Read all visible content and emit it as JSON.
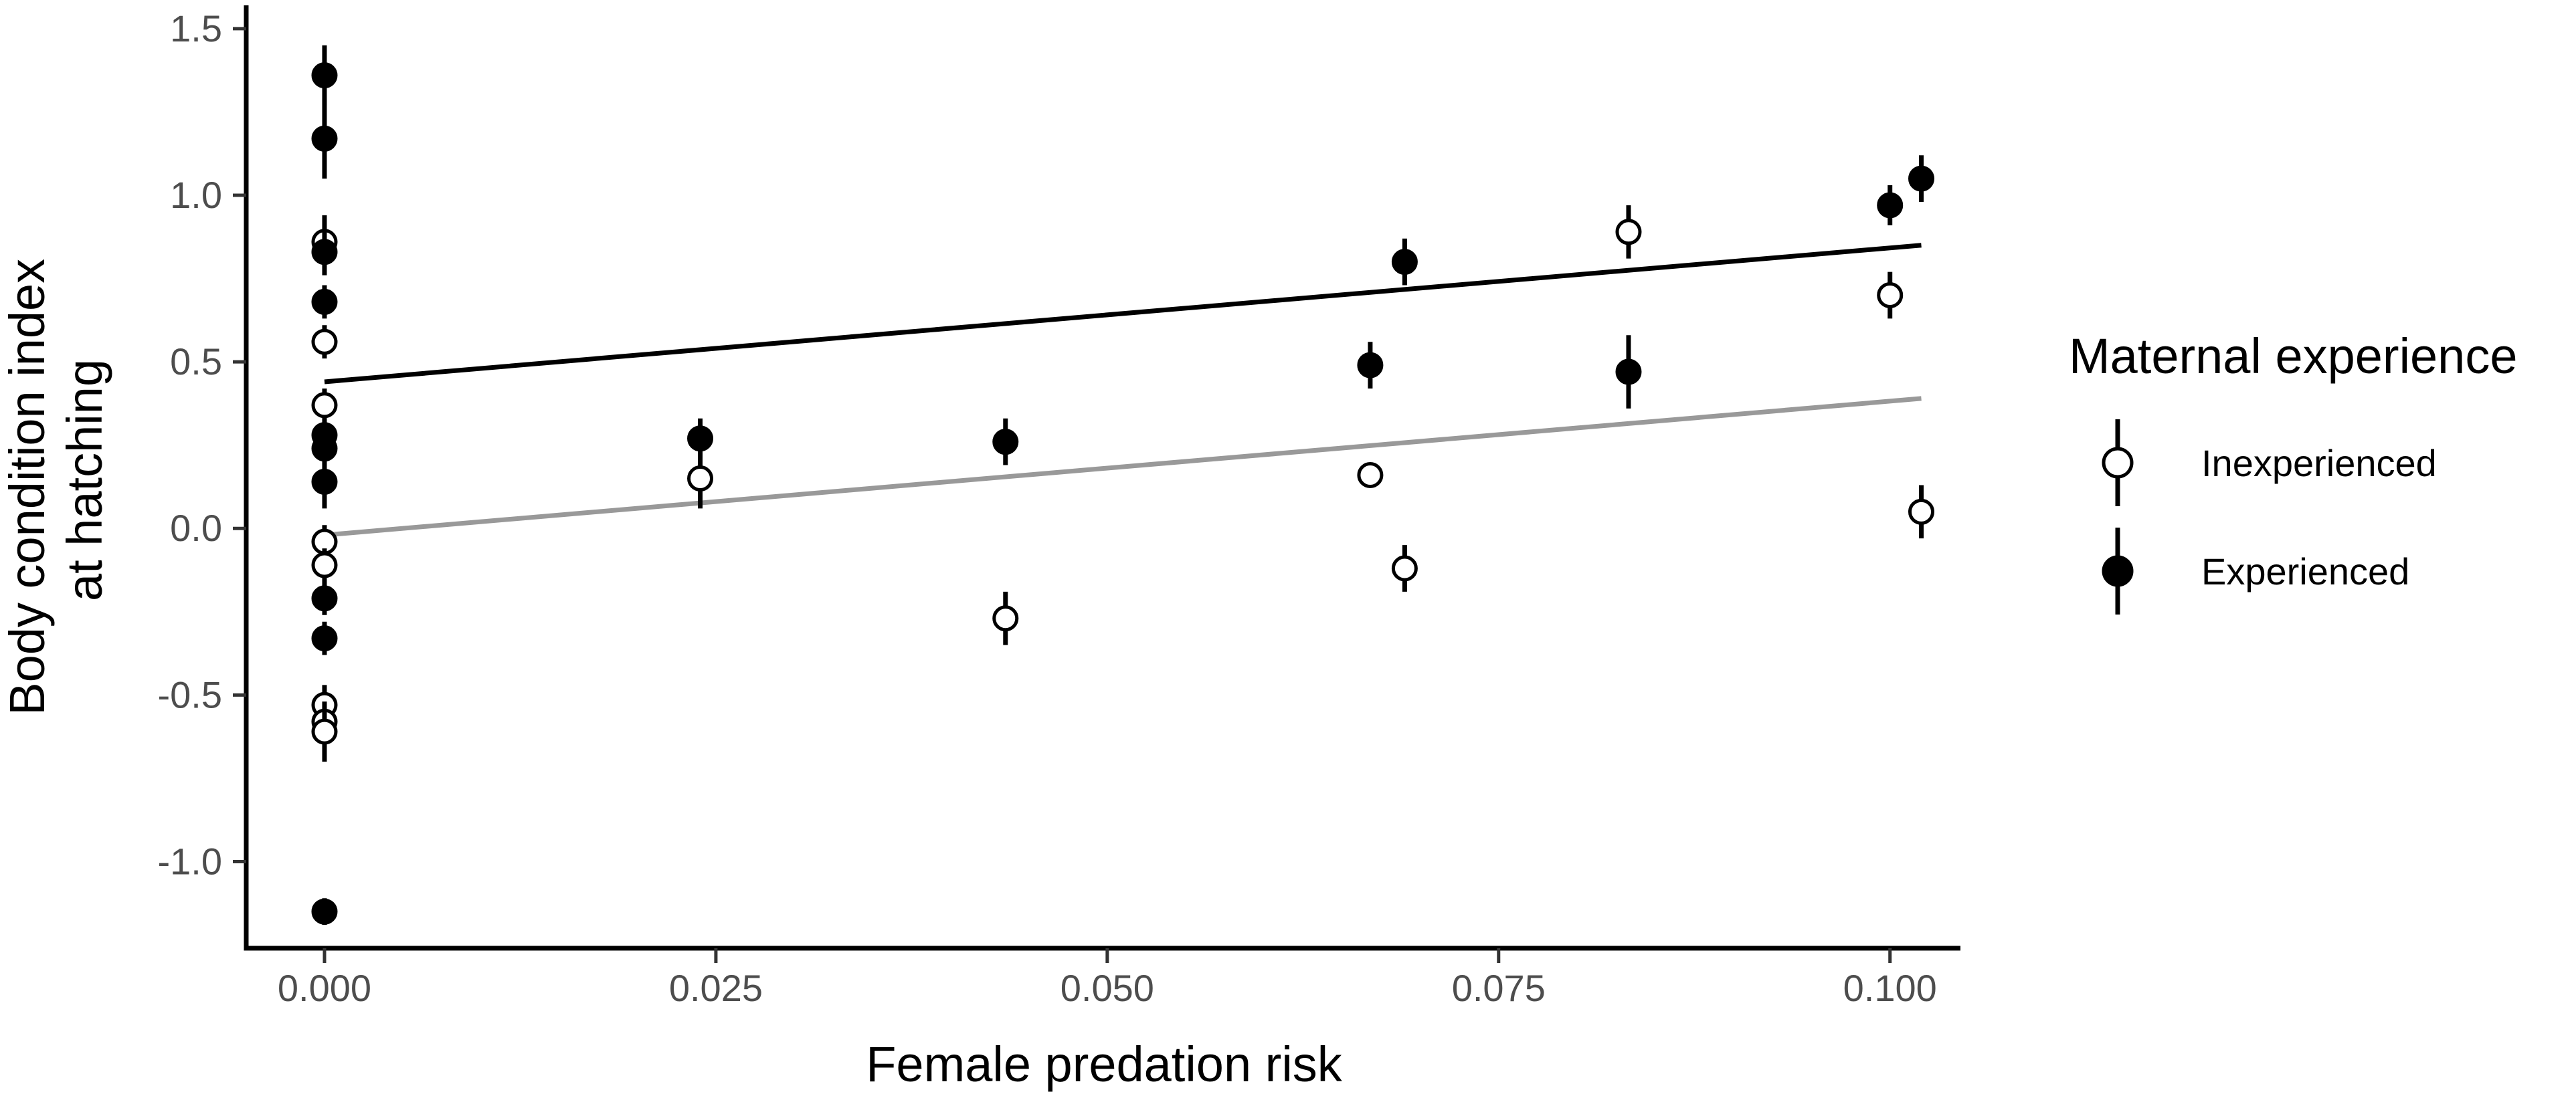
{
  "chart_data": {
    "type": "scatter",
    "title": "",
    "xlabel": "Female predation risk",
    "ylabel_lines": [
      "Body condition index",
      "at hatching"
    ],
    "xlim": [
      -0.005,
      0.1045
    ],
    "ylim": [
      -1.26,
      1.57
    ],
    "x_ticks": [
      0.0,
      0.025,
      0.05,
      0.075,
      0.1
    ],
    "x_tick_labels": [
      "0.000",
      "0.025",
      "0.050",
      "0.075",
      "0.100"
    ],
    "y_ticks": [
      1.5,
      1.0,
      0.5,
      0.0,
      -0.5,
      -1.0
    ],
    "y_tick_labels": [
      "1.5",
      "1.0",
      "0.5",
      "0.0",
      "-0.5",
      "-1.0"
    ],
    "grid": false,
    "legend": {
      "title": "Maternal experience",
      "position": "right",
      "entries": [
        {
          "label": "Inexperienced",
          "fill": "#ffffff",
          "stroke": "#000000"
        },
        {
          "label": "Experienced",
          "fill": "#000000",
          "stroke": "#000000"
        }
      ]
    },
    "series": [
      {
        "name": "Inexperienced",
        "fill": "#ffffff",
        "stroke": "#000000",
        "line_color": "#999999",
        "trend_line": {
          "x": [
            0.0,
            0.102
          ],
          "y": [
            -0.02,
            0.39
          ]
        },
        "points": [
          {
            "x": 0.0,
            "y": 0.86,
            "se": 0.08
          },
          {
            "x": 0.0,
            "y": 0.56,
            "se": 0.05
          },
          {
            "x": 0.0,
            "y": 0.37,
            "se": 0.05
          },
          {
            "x": 0.0,
            "y": -0.04,
            "se": 0.05
          },
          {
            "x": 0.0,
            "y": -0.11,
            "se": 0.05
          },
          {
            "x": 0.0,
            "y": -0.53,
            "se": 0.06
          },
          {
            "x": 0.0,
            "y": -0.58,
            "se": 0.06
          },
          {
            "x": 0.0,
            "y": -0.61,
            "se": 0.09
          },
          {
            "x": 0.024,
            "y": 0.15,
            "se": 0.09
          },
          {
            "x": 0.0435,
            "y": -0.27,
            "se": 0.08
          },
          {
            "x": 0.0668,
            "y": 0.16,
            "se": 0.03
          },
          {
            "x": 0.069,
            "y": -0.12,
            "se": 0.07
          },
          {
            "x": 0.0833,
            "y": 0.89,
            "se": 0.08
          },
          {
            "x": 0.1,
            "y": 0.7,
            "se": 0.07
          },
          {
            "x": 0.102,
            "y": 0.05,
            "se": 0.08
          }
        ]
      },
      {
        "name": "Experienced",
        "fill": "#000000",
        "stroke": "#000000",
        "line_color": "#000000",
        "trend_line": {
          "x": [
            0.0,
            0.102
          ],
          "y": [
            0.44,
            0.85
          ]
        },
        "points": [
          {
            "x": 0.0,
            "y": 1.36,
            "se": 0.09
          },
          {
            "x": 0.0,
            "y": 1.17,
            "se": 0.12
          },
          {
            "x": 0.0,
            "y": 0.83,
            "se": 0.07
          },
          {
            "x": 0.0,
            "y": 0.68,
            "se": 0.05
          },
          {
            "x": 0.0,
            "y": 0.28,
            "se": 0.05
          },
          {
            "x": 0.0,
            "y": 0.24,
            "se": 0.05
          },
          {
            "x": 0.0,
            "y": 0.14,
            "se": 0.08
          },
          {
            "x": 0.0,
            "y": -0.21,
            "se": 0.05
          },
          {
            "x": 0.0,
            "y": -0.33,
            "se": 0.05
          },
          {
            "x": 0.0,
            "y": -1.15,
            "se": 0.04
          },
          {
            "x": 0.024,
            "y": 0.27,
            "se": 0.06
          },
          {
            "x": 0.0435,
            "y": 0.26,
            "se": 0.07
          },
          {
            "x": 0.0668,
            "y": 0.49,
            "se": 0.07
          },
          {
            "x": 0.069,
            "y": 0.8,
            "se": 0.07
          },
          {
            "x": 0.0833,
            "y": 0.47,
            "se": 0.11
          },
          {
            "x": 0.1,
            "y": 0.97,
            "se": 0.06
          },
          {
            "x": 0.102,
            "y": 1.05,
            "se": 0.07
          }
        ]
      }
    ]
  }
}
